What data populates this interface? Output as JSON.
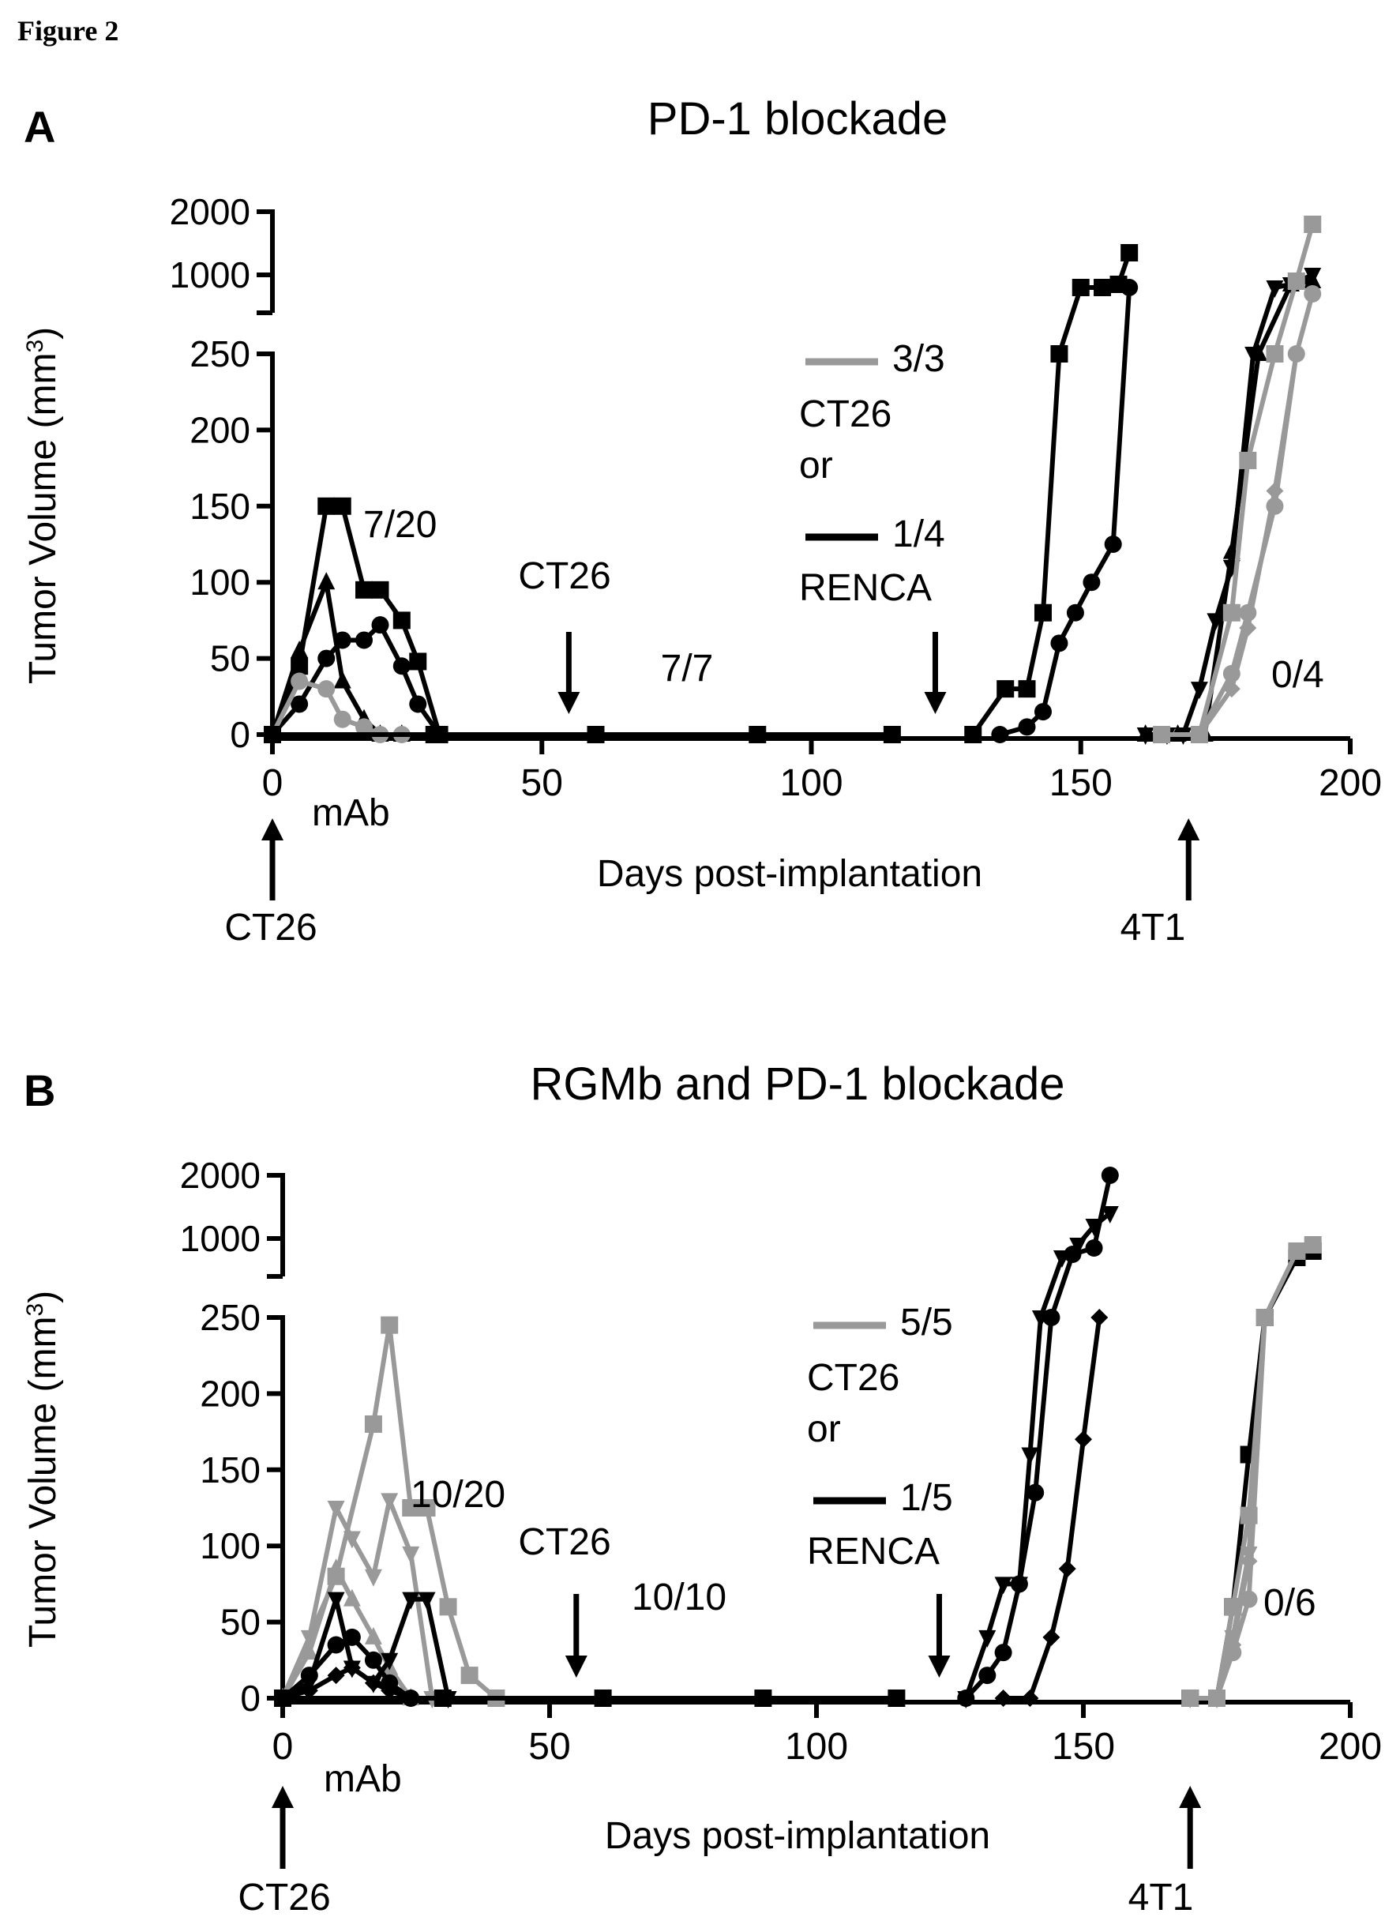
{
  "figure_label": "Figure 2",
  "colors": {
    "black_series": "#000000",
    "gray_series": "#999999"
  },
  "chart_data": [
    {
      "type": "line",
      "panel_letter": "A",
      "title": "PD-1 blockade",
      "xlabel": "Days post-implantation",
      "ylabel_pre": "Tumor Volume (mm",
      "ylabel_sup": "3",
      "ylabel_post": ")",
      "xlim": [
        0,
        200
      ],
      "x_ticks": [
        0,
        50,
        100,
        150,
        200
      ],
      "ylim_lower": [
        0,
        250
      ],
      "y_ticks_lower": [
        0,
        50,
        100,
        150,
        200,
        250
      ],
      "ylim_upper": [
        500,
        2000
      ],
      "y_ticks_upper": [
        1000,
        2000
      ],
      "axis_break": true,
      "grid": false,
      "annotations": {
        "initial_response": "7/20",
        "rechallenge_1": "CT26",
        "surviving": "7/7",
        "legend_gray_value": "3/3",
        "legend_text_1": "CT26",
        "legend_text_2": "or",
        "legend_black_value": "1/4",
        "legend_text_3": "RENCA",
        "final_count": "0/4",
        "mab_label": "mAb",
        "start_arrow_label": "CT26",
        "late_arrow_label": "4T1"
      },
      "arrow_days": {
        "start": 0,
        "ct26": 55,
        "renca": 123,
        "t41": 170
      },
      "series": [
        {
          "color": "black",
          "marker": "square",
          "x": [
            0,
            5,
            10,
            13,
            17,
            20,
            24,
            27,
            31
          ],
          "y": [
            0,
            45,
            150,
            150,
            95,
            95,
            75,
            48,
            0
          ]
        },
        {
          "color": "black",
          "marker": "circle",
          "x": [
            0,
            5,
            10,
            13,
            17,
            20,
            24,
            27,
            31
          ],
          "y": [
            0,
            20,
            50,
            62,
            62,
            72,
            45,
            20,
            0
          ]
        },
        {
          "color": "black",
          "marker": "triangle",
          "x": [
            0,
            5,
            10,
            13,
            17,
            20,
            24
          ],
          "y": [
            0,
            55,
            100,
            35,
            10,
            0,
            0
          ]
        },
        {
          "color": "gray",
          "marker": "circle",
          "x": [
            0,
            5,
            10,
            13,
            17,
            20,
            24
          ],
          "y": [
            0,
            35,
            30,
            10,
            5,
            0,
            0
          ]
        },
        {
          "color": "black",
          "marker": "square",
          "x": [
            0,
            30,
            60,
            90,
            115
          ],
          "y": [
            0,
            0,
            0,
            0,
            0
          ]
        },
        {
          "color": "black",
          "marker": "square",
          "x": [
            130,
            136,
            140,
            143,
            146,
            150,
            154,
            157,
            159
          ],
          "y": [
            0,
            30,
            30,
            80,
            250,
            800,
            800,
            850,
            1350
          ]
        },
        {
          "color": "black",
          "marker": "circle",
          "x": [
            135,
            140,
            143,
            146,
            149,
            152,
            156,
            159
          ],
          "y": [
            0,
            5,
            15,
            60,
            80,
            100,
            125,
            800
          ]
        },
        {
          "color": "black",
          "marker": "triangle_down",
          "x": [
            162,
            166,
            169,
            172,
            175,
            178,
            182,
            186,
            189,
            193
          ],
          "y": [
            0,
            0,
            0,
            30,
            75,
            110,
            250,
            800,
            850,
            1000
          ]
        },
        {
          "color": "black",
          "marker": "triangle",
          "x": [
            162,
            168,
            173,
            178,
            183,
            189,
            193
          ],
          "y": [
            0,
            0,
            0,
            120,
            250,
            850,
            900
          ]
        },
        {
          "color": "gray",
          "marker": "square",
          "x": [
            165,
            172,
            178,
            181,
            186,
            190,
            193
          ],
          "y": [
            0,
            0,
            80,
            180,
            250,
            900,
            1800
          ]
        },
        {
          "color": "gray",
          "marker": "circle",
          "x": [
            165,
            172,
            178,
            181,
            186,
            190,
            193
          ],
          "y": [
            0,
            0,
            40,
            80,
            150,
            250,
            700
          ]
        },
        {
          "color": "gray",
          "marker": "diamond",
          "x": [
            165,
            172,
            178,
            181,
            186,
            190
          ],
          "y": [
            0,
            0,
            30,
            70,
            160,
            250
          ]
        }
      ]
    },
    {
      "type": "line",
      "panel_letter": "B",
      "title": "RGMb and PD-1 blockade",
      "xlabel": "Days post-implantation",
      "ylabel_pre": "Tumor Volume (mm",
      "ylabel_sup": "3",
      "ylabel_post": ")",
      "xlim": [
        0,
        200
      ],
      "x_ticks": [
        0,
        50,
        100,
        150,
        200
      ],
      "ylim_lower": [
        0,
        250
      ],
      "y_ticks_lower": [
        0,
        50,
        100,
        150,
        200,
        250
      ],
      "ylim_upper": [
        500,
        2000
      ],
      "y_ticks_upper": [
        1000,
        2000
      ],
      "axis_break": true,
      "grid": false,
      "annotations": {
        "initial_response": "10/20",
        "rechallenge_1": "CT26",
        "surviving": "10/10",
        "legend_gray_value": "5/5",
        "legend_text_1": "CT26",
        "legend_text_2": "or",
        "legend_black_value": "1/5",
        "legend_text_3": "RENCA",
        "final_count": "0/6",
        "mab_label": "mAb",
        "start_arrow_label": "CT26",
        "late_arrow_label": "4T1"
      },
      "arrow_days": {
        "start": 0,
        "ct26": 55,
        "renca": 123,
        "t41": 170
      },
      "series": [
        {
          "color": "gray",
          "marker": "square",
          "x": [
            0,
            10,
            17,
            20,
            24,
            27,
            31,
            35,
            40
          ],
          "y": [
            0,
            80,
            180,
            245,
            125,
            125,
            60,
            15,
            0
          ]
        },
        {
          "color": "gray",
          "marker": "triangle_down",
          "x": [
            0,
            5,
            10,
            13,
            17,
            20,
            24,
            28
          ],
          "y": [
            0,
            40,
            125,
            105,
            80,
            130,
            95,
            0
          ]
        },
        {
          "color": "gray",
          "marker": "triangle",
          "x": [
            0,
            5,
            10,
            13,
            17,
            20,
            24
          ],
          "y": [
            0,
            30,
            85,
            65,
            40,
            20,
            0
          ]
        },
        {
          "color": "black",
          "marker": "triangle_down",
          "x": [
            0,
            5,
            10,
            13,
            17,
            20,
            24,
            27,
            31
          ],
          "y": [
            0,
            10,
            65,
            20,
            10,
            25,
            65,
            65,
            0
          ]
        },
        {
          "color": "black",
          "marker": "circle",
          "x": [
            0,
            5,
            10,
            13,
            17,
            20,
            24
          ],
          "y": [
            0,
            15,
            35,
            40,
            25,
            10,
            0
          ]
        },
        {
          "color": "black",
          "marker": "diamond",
          "x": [
            0,
            5,
            10,
            13,
            17,
            20,
            24
          ],
          "y": [
            0,
            5,
            15,
            20,
            10,
            5,
            0
          ]
        },
        {
          "color": "black",
          "marker": "square",
          "x": [
            0,
            30,
            60,
            90,
            115
          ],
          "y": [
            0,
            0,
            0,
            0,
            0
          ]
        },
        {
          "color": "black",
          "marker": "triangle_down",
          "x": [
            128,
            132,
            135,
            138,
            140,
            142,
            146,
            149,
            152,
            155
          ],
          "y": [
            0,
            40,
            75,
            75,
            160,
            250,
            700,
            900,
            1200,
            1400
          ]
        },
        {
          "color": "black",
          "marker": "circle",
          "x": [
            128,
            132,
            135,
            138,
            141,
            144,
            148,
            152,
            155
          ],
          "y": [
            0,
            15,
            30,
            75,
            135,
            250,
            750,
            850,
            2000
          ]
        },
        {
          "color": "black",
          "marker": "diamond",
          "x": [
            135,
            140,
            144,
            147,
            150,
            153
          ],
          "y": [
            0,
            0,
            40,
            85,
            170,
            250
          ]
        },
        {
          "color": "black",
          "marker": "square",
          "x": [
            170,
            175,
            178,
            181,
            184,
            190,
            193
          ],
          "y": [
            0,
            0,
            60,
            160,
            250,
            700,
            800
          ]
        },
        {
          "color": "gray",
          "marker": "square",
          "x": [
            170,
            175,
            178,
            181,
            184,
            190,
            193
          ],
          "y": [
            0,
            0,
            60,
            120,
            250,
            800,
            900
          ]
        },
        {
          "color": "gray",
          "marker": "circle",
          "x": [
            170,
            175,
            178,
            181,
            184
          ],
          "y": [
            0,
            0,
            30,
            65,
            250
          ]
        },
        {
          "color": "gray",
          "marker": "triangle_down",
          "x": [
            170,
            175,
            178,
            181,
            184
          ],
          "y": [
            0,
            0,
            40,
            95,
            250
          ]
        },
        {
          "color": "gray",
          "marker": "diamond",
          "x": [
            170,
            175,
            178,
            181,
            184
          ],
          "y": [
            0,
            0,
            35,
            90,
            250
          ]
        }
      ]
    }
  ]
}
